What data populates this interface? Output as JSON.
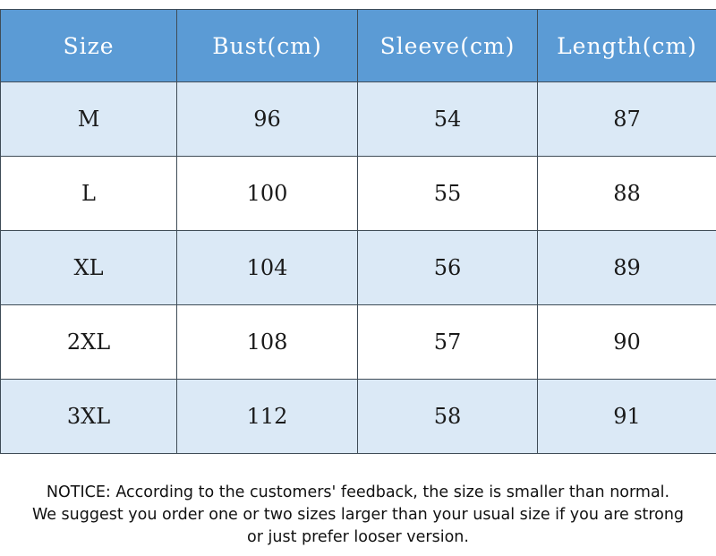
{
  "table": {
    "headers": [
      "Size",
      "Bust(cm)",
      "Sleeve(cm)",
      "Length(cm)"
    ],
    "rows": [
      [
        "M",
        "96",
        "54",
        "87"
      ],
      [
        "L",
        "100",
        "55",
        "88"
      ],
      [
        "XL",
        "104",
        "56",
        "89"
      ],
      [
        "2XL",
        "108",
        "57",
        "90"
      ],
      [
        "3XL",
        "112",
        "58",
        "91"
      ]
    ]
  },
  "notice": {
    "line1": "NOTICE: According to the customers' feedback, the size is smaller than normal.",
    "line2": "We suggest you order one or two sizes larger than your usual size if you are strong",
    "line3": "or just prefer looser version."
  },
  "colors": {
    "header_bg": "#5b9bd5",
    "row_shaded_bg": "#dbe9f6",
    "row_plain_bg": "#ffffff",
    "border": "#3f4c57"
  }
}
